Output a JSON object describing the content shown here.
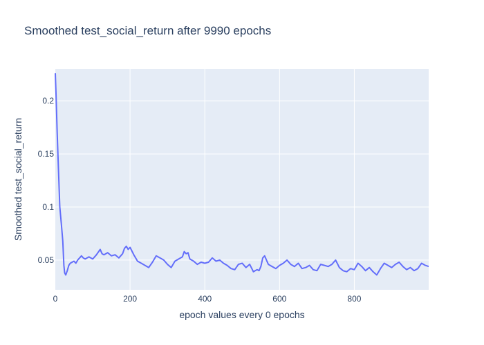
{
  "chart_data": {
    "type": "line",
    "title": "Smoothed test_social_return after 9990 epochs",
    "xlabel": "epoch values every 0 epochs",
    "ylabel": "Smoothed test_social_return",
    "xlim": [
      0,
      999
    ],
    "ylim": [
      0.022,
      0.23
    ],
    "x_ticks": [
      0,
      200,
      400,
      600,
      800
    ],
    "y_ticks": [
      0.05,
      0.1,
      0.15,
      0.2
    ],
    "y_tick_labels": [
      "0.05",
      "0.1",
      "0.15",
      "0.2"
    ],
    "grid": true,
    "colors": {
      "plot_bg": "#e5ecf6",
      "grid": "#ffffff",
      "line": "#636efa"
    },
    "series": [
      {
        "x": [
          0,
          2,
          5,
          8,
          12,
          16,
          20,
          23,
          25,
          28,
          32,
          36,
          40,
          45,
          50,
          55,
          60,
          65,
          70,
          75,
          80,
          90,
          100,
          110,
          120,
          125,
          130,
          140,
          150,
          160,
          170,
          180,
          185,
          190,
          195,
          200,
          210,
          220,
          230,
          240,
          250,
          260,
          270,
          280,
          290,
          300,
          310,
          320,
          330,
          340,
          345,
          350,
          355,
          360,
          370,
          380,
          390,
          400,
          410,
          420,
          430,
          440,
          450,
          460,
          470,
          480,
          490,
          500,
          510,
          520,
          530,
          540,
          545,
          550,
          555,
          560,
          570,
          580,
          590,
          600,
          610,
          620,
          630,
          640,
          650,
          660,
          670,
          680,
          690,
          700,
          710,
          720,
          730,
          740,
          750,
          760,
          770,
          780,
          790,
          800,
          810,
          820,
          830,
          840,
          850,
          860,
          870,
          880,
          890,
          900,
          910,
          920,
          930,
          940,
          950,
          960,
          970,
          980,
          990,
          999
        ],
        "y": [
          0.226,
          0.205,
          0.17,
          0.14,
          0.1,
          0.085,
          0.068,
          0.045,
          0.038,
          0.036,
          0.04,
          0.045,
          0.047,
          0.048,
          0.049,
          0.047,
          0.05,
          0.052,
          0.054,
          0.052,
          0.051,
          0.053,
          0.051,
          0.055,
          0.06,
          0.056,
          0.055,
          0.057,
          0.054,
          0.055,
          0.052,
          0.056,
          0.061,
          0.063,
          0.06,
          0.062,
          0.055,
          0.049,
          0.047,
          0.045,
          0.043,
          0.048,
          0.054,
          0.052,
          0.05,
          0.046,
          0.043,
          0.049,
          0.051,
          0.053,
          0.058,
          0.056,
          0.057,
          0.051,
          0.049,
          0.046,
          0.048,
          0.047,
          0.048,
          0.052,
          0.049,
          0.05,
          0.047,
          0.045,
          0.042,
          0.041,
          0.046,
          0.047,
          0.043,
          0.046,
          0.039,
          0.041,
          0.04,
          0.044,
          0.052,
          0.054,
          0.046,
          0.044,
          0.042,
          0.045,
          0.047,
          0.05,
          0.046,
          0.044,
          0.047,
          0.042,
          0.043,
          0.045,
          0.041,
          0.04,
          0.046,
          0.045,
          0.044,
          0.046,
          0.05,
          0.043,
          0.04,
          0.039,
          0.042,
          0.041,
          0.047,
          0.044,
          0.04,
          0.043,
          0.039,
          0.036,
          0.042,
          0.047,
          0.045,
          0.043,
          0.046,
          0.048,
          0.044,
          0.041,
          0.043,
          0.04,
          0.042,
          0.047,
          0.045,
          0.044
        ]
      }
    ]
  }
}
